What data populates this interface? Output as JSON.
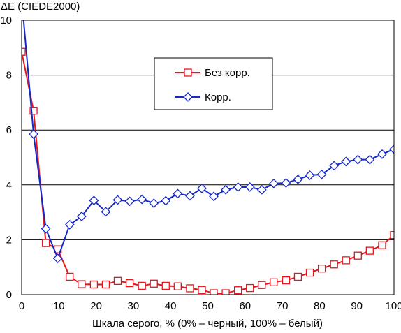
{
  "chart_data": {
    "type": "line",
    "title": "",
    "ylabel": "ΔE (CIEDE2000)",
    "xlabel": "Шкала серого, % (0% – черный, 100% – белый)",
    "xlim": [
      0,
      100
    ],
    "ylim": [
      0,
      10
    ],
    "xticks": [
      0,
      10,
      20,
      30,
      40,
      50,
      60,
      70,
      80,
      90,
      100
    ],
    "yticks": [
      0,
      2,
      4,
      6,
      8,
      10
    ],
    "grid": "horizontal",
    "legend_position": "top-center",
    "series": [
      {
        "name": "Без корр.",
        "color": "#e8141c",
        "marker": "square",
        "x": [
          0,
          3.2,
          6.5,
          9.7,
          12.9,
          16.1,
          19.4,
          22.6,
          25.8,
          29.0,
          32.3,
          35.5,
          38.7,
          41.9,
          45.2,
          48.4,
          51.6,
          54.8,
          58.1,
          61.3,
          64.5,
          67.7,
          71.0,
          74.2,
          77.4,
          80.6,
          83.9,
          87.1,
          90.3,
          93.5,
          96.8,
          100
        ],
        "y": [
          8.85,
          6.7,
          1.88,
          1.65,
          0.65,
          0.38,
          0.37,
          0.37,
          0.5,
          0.42,
          0.32,
          0.4,
          0.32,
          0.3,
          0.23,
          0.17,
          0.05,
          0.05,
          0.16,
          0.24,
          0.35,
          0.45,
          0.52,
          0.65,
          0.8,
          0.95,
          1.1,
          1.25,
          1.42,
          1.6,
          1.8,
          2.17
        ]
      },
      {
        "name": "Корр.",
        "color": "#1428c8",
        "marker": "diamond",
        "x": [
          0,
          3.2,
          6.5,
          9.7,
          12.9,
          16.1,
          19.4,
          22.6,
          25.8,
          29.0,
          32.3,
          35.5,
          38.7,
          41.9,
          45.2,
          48.4,
          51.6,
          54.8,
          58.1,
          61.3,
          64.5,
          67.7,
          71.0,
          74.2,
          77.4,
          80.6,
          83.9,
          87.1,
          90.3,
          93.5,
          96.8,
          100
        ],
        "y": [
          10.8,
          5.85,
          2.4,
          1.32,
          2.55,
          2.85,
          3.43,
          3.02,
          3.45,
          3.4,
          3.47,
          3.33,
          3.42,
          3.68,
          3.6,
          3.87,
          3.58,
          3.82,
          3.92,
          3.92,
          3.82,
          4.05,
          4.07,
          4.2,
          4.35,
          4.38,
          4.7,
          4.85,
          4.92,
          4.92,
          5.12,
          5.3
        ]
      }
    ]
  }
}
